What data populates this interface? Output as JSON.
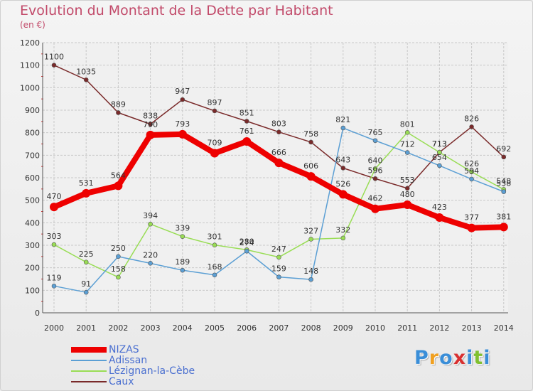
{
  "title": "Evolution du Montant de la Dette par Habitant",
  "unit": "(en €)",
  "logo": {
    "letters": [
      "P",
      "r",
      "o",
      "x",
      "i",
      "t",
      "i"
    ],
    "colors": [
      "#3a8ed8",
      "#f0a020",
      "#3a8ed8",
      "#d83030",
      "#3a8ed8",
      "#80c030",
      "#3a8ed8"
    ]
  },
  "chart_data": {
    "type": "line",
    "x": [
      "2000",
      "2001",
      "2002",
      "2003",
      "2004",
      "2005",
      "2006",
      "2007",
      "2008",
      "2009",
      "2010",
      "2011",
      "2012",
      "2013",
      "2014"
    ],
    "ylim": [
      0,
      1200
    ],
    "yticks": [
      "0",
      "100",
      "200",
      "300",
      "400",
      "500",
      "600",
      "700",
      "800",
      "900",
      "1000",
      "1100",
      "1200"
    ],
    "grid": true,
    "legend_position": "bottom-left",
    "series": [
      {
        "name": "NIZAS",
        "color": "#ee0000",
        "width": 8,
        "values": [
          470,
          531,
          564,
          790,
          793,
          709,
          761,
          666,
          606,
          526,
          462,
          480,
          423,
          377,
          381
        ],
        "labels": [
          "470",
          "531",
          "564",
          "790",
          "793",
          "709",
          "761",
          "666",
          "606",
          "526",
          "462",
          "480",
          "423",
          "377",
          "381"
        ]
      },
      {
        "name": "Adissan",
        "color": "#5b9fd4",
        "width": 1.5,
        "values": [
          119,
          91,
          250,
          220,
          189,
          168,
          274,
          159,
          148,
          821,
          765,
          712,
          654,
          594,
          538
        ],
        "labels": [
          "119",
          "91",
          "250",
          "220",
          "189",
          "168",
          "274",
          "159",
          "148",
          "821",
          "765",
          "712",
          "654",
          "594",
          "538"
        ]
      },
      {
        "name": "Lézignan-la-Cèbe",
        "color": "#99dd55",
        "width": 1.5,
        "values": [
          303,
          225,
          158,
          394,
          339,
          301,
          280,
          247,
          327,
          332,
          640,
          801,
          713,
          626,
          548
        ],
        "labels": [
          "303",
          "225",
          "158",
          "394",
          "339",
          "301",
          "280",
          "247",
          "327",
          "332",
          "640",
          "801",
          "713",
          "626",
          "548"
        ]
      },
      {
        "name": "Caux",
        "color": "#7a2a2a",
        "width": 1.5,
        "values": [
          1100,
          1035,
          889,
          838,
          947,
          897,
          851,
          803,
          758,
          643,
          596,
          553,
          713,
          826,
          692
        ],
        "labels": [
          "1100",
          "1035",
          "889",
          "838",
          "947",
          "897",
          "851",
          "803",
          "758",
          "643",
          "596",
          "553",
          "713",
          "826",
          "692"
        ]
      }
    ]
  }
}
